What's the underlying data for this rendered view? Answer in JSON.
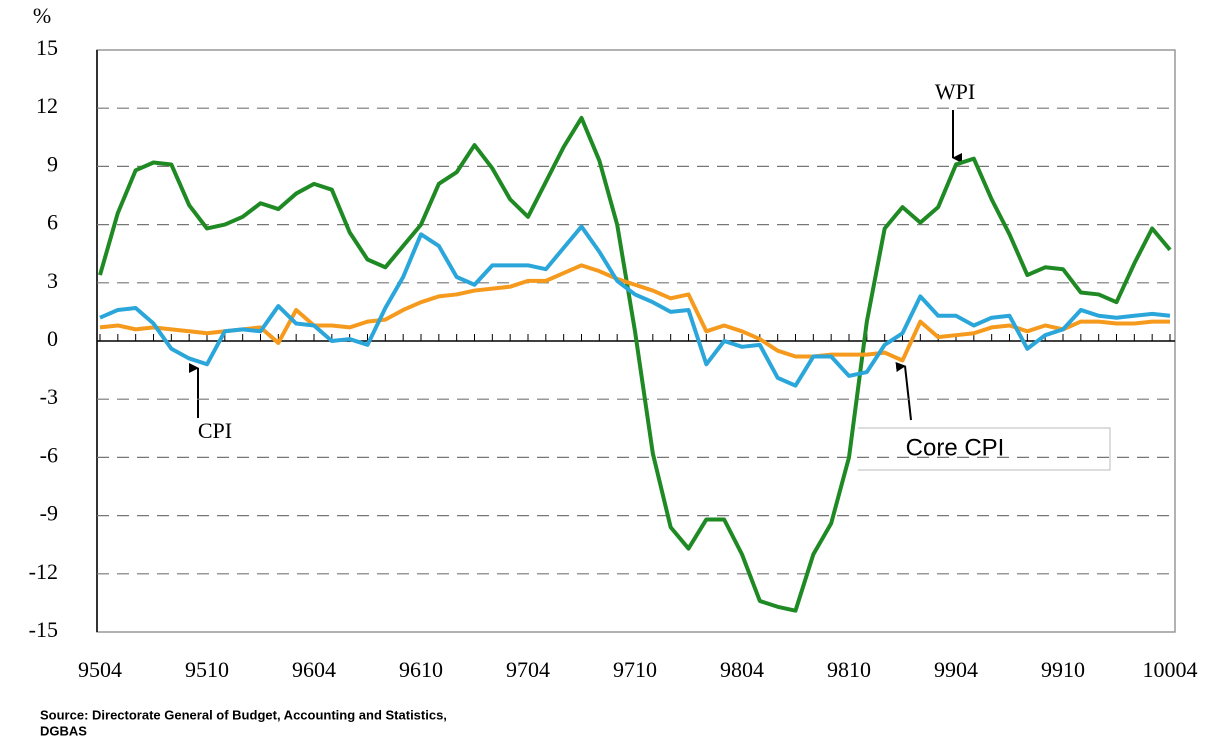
{
  "chart_data": {
    "type": "line",
    "y_unit": "%",
    "categories": [
      "9504",
      null,
      null,
      null,
      null,
      null,
      "9510",
      null,
      null,
      null,
      null,
      null,
      "9604",
      null,
      null,
      null,
      null,
      null,
      "9610",
      null,
      null,
      null,
      null,
      null,
      "9704",
      null,
      null,
      null,
      null,
      null,
      "9710",
      null,
      null,
      null,
      null,
      null,
      "9804",
      null,
      null,
      null,
      null,
      null,
      "9810",
      null,
      null,
      null,
      null,
      null,
      "9904",
      null,
      null,
      null,
      null,
      null,
      "9910",
      null,
      null,
      null,
      null,
      null,
      "10004"
    ],
    "series": [
      {
        "name": "WPI",
        "color": "#1f8a24",
        "values": [
          3.4,
          6.6,
          8.8,
          9.2,
          9.1,
          7.0,
          5.8,
          6.0,
          6.4,
          7.1,
          6.8,
          7.6,
          8.1,
          7.8,
          5.6,
          4.2,
          3.8,
          4.9,
          6.0,
          8.1,
          8.7,
          10.1,
          8.9,
          7.3,
          6.4,
          8.2,
          10.0,
          11.5,
          9.3,
          6.0,
          0.5,
          -5.8,
          -9.6,
          -10.7,
          -9.2,
          -9.2,
          -11.0,
          -13.4,
          -13.7,
          -13.9,
          -11.0,
          -9.4,
          -6.0,
          1.0,
          5.8,
          6.9,
          6.1,
          6.9,
          9.1,
          9.4,
          7.3,
          5.5,
          3.4,
          3.8,
          3.7,
          2.5,
          2.4,
          2.0,
          4.0,
          5.8,
          4.7
        ]
      },
      {
        "name": "CPI",
        "color": "#2ba6da",
        "values": [
          1.2,
          1.6,
          1.7,
          0.9,
          -0.4,
          -0.9,
          -1.2,
          0.5,
          0.6,
          0.5,
          1.8,
          0.9,
          0.8,
          0.0,
          0.1,
          -0.2,
          1.7,
          3.3,
          5.5,
          4.9,
          3.3,
          2.9,
          3.9,
          3.9,
          3.9,
          3.7,
          4.8,
          5.9,
          4.6,
          3.1,
          2.4,
          2.0,
          1.5,
          1.6,
          -1.2,
          0.0,
          -0.3,
          -0.2,
          -1.9,
          -2.3,
          -0.8,
          -0.8,
          -1.8,
          -1.6,
          -0.2,
          0.4,
          2.3,
          1.3,
          1.3,
          0.8,
          1.2,
          1.3,
          -0.4,
          0.3,
          0.6,
          1.6,
          1.3,
          1.2,
          1.3,
          1.4,
          1.3
        ]
      },
      {
        "name": "Core CPI",
        "color": "#f59a1c",
        "values": [
          0.7,
          0.8,
          0.6,
          0.7,
          0.6,
          0.5,
          0.4,
          0.5,
          0.6,
          0.7,
          -0.1,
          1.6,
          0.8,
          0.8,
          0.7,
          1.0,
          1.1,
          1.6,
          2.0,
          2.3,
          2.4,
          2.6,
          2.7,
          2.8,
          3.1,
          3.1,
          3.5,
          3.9,
          3.6,
          3.2,
          2.9,
          2.6,
          2.2,
          2.4,
          0.5,
          0.8,
          0.5,
          0.1,
          -0.5,
          -0.8,
          -0.8,
          -0.7,
          -0.7,
          -0.7,
          -0.6,
          -1.0,
          1.0,
          0.2,
          0.3,
          0.4,
          0.7,
          0.8,
          0.5,
          0.8,
          0.6,
          1.0,
          1.0,
          0.9,
          0.9,
          1.0,
          1.0
        ]
      }
    ],
    "ylim": [
      -15,
      15
    ],
    "yticks": [
      -15,
      -12,
      -9,
      -6,
      -3,
      0,
      3,
      6,
      9,
      12,
      15
    ],
    "grid": true,
    "source": [
      "Source: Directorate General of Budget, Accounting and Statistics,",
      "DGBAS"
    ]
  }
}
